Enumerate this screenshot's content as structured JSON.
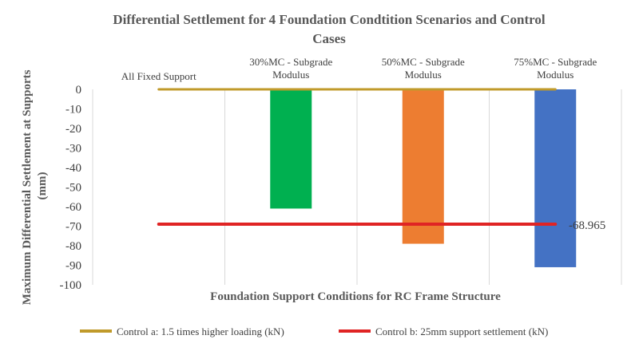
{
  "chart_data": {
    "type": "bar",
    "title": "Differential Settlement for  4 Foundation Condtition  Scenarios and Control Cases",
    "title_lines": [
      "Differential Settlement for  4 Foundation Condtition  Scenarios and Control",
      "Cases"
    ],
    "xlabel": "Foundation Support Conditions for RC Frame Structure",
    "ylabel": "Maximum Differential Settlement at Supports (mm)",
    "ylabel_lines": [
      "Maximum Differential Settlement at Supports",
      "(mm)"
    ],
    "ylim": [
      -100,
      0
    ],
    "yticks": [
      0,
      -10,
      -20,
      -30,
      -40,
      -50,
      -60,
      -70,
      -80,
      -90,
      -100
    ],
    "grid": "vertical-category",
    "categories": [
      "All Fixed Support",
      "30%MC - Subgrade Modulus",
      "50%MC - Subgrade Modulus",
      "75%MC - Subgrade Modulus"
    ],
    "category_lines": [
      [
        "All Fixed Support"
      ],
      [
        "30%MC - Subgrade",
        "Modulus"
      ],
      [
        "50%MC - Subgrade",
        "Modulus"
      ],
      [
        "75%MC - Subgrade",
        "Modulus"
      ]
    ],
    "values": [
      0,
      -61,
      -79,
      -91
    ],
    "bar_colors": [
      "#00b050",
      "#00b050",
      "#ed7d31",
      "#4472c4"
    ],
    "lines": [
      {
        "name": "Control a: 1.5 times higher loading (kN)",
        "value": 0,
        "color": "#c09a2a"
      },
      {
        "name": "Control b: 25mm support settlement (kN)",
        "value": -68.965,
        "color": "#e02424"
      }
    ],
    "annotation": "-68.965",
    "legend_position": "bottom"
  }
}
